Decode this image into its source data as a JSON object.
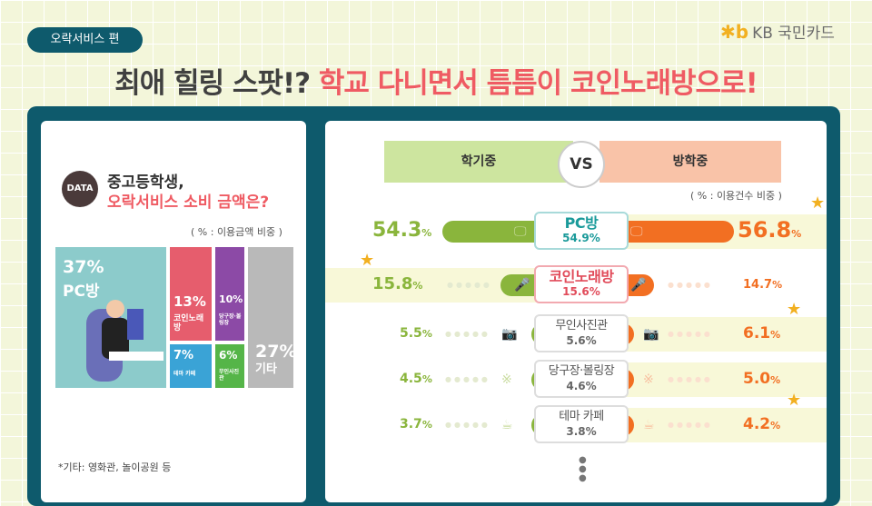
{
  "tag": "오락서비스 편",
  "logo": {
    "mark": "✱b",
    "text": "KB 국민카드"
  },
  "title": {
    "part1": "최애 힐링 스팟!?",
    "part2": "학교 다니면서 틈틈이 코인노래방으로!"
  },
  "left": {
    "badge": "DATA",
    "heading1": "중고등학생,",
    "heading2": "오락서비스 소비 금액은?",
    "unit": "( % : 이용금액 비중 )",
    "treemap": [
      {
        "pct": "37%",
        "label": "PC방",
        "color": "#8ccbcb"
      },
      {
        "pct": "13%",
        "label": "코인노래방",
        "color": "#e65d6d"
      },
      {
        "pct": "10%",
        "label": "당구장·볼링장",
        "color": "#8c4aa6"
      },
      {
        "pct": "27%",
        "label": "기타",
        "color": "#b9b9b9"
      },
      {
        "pct": "7%",
        "label": "테마 카페",
        "color": "#3aa3d6"
      },
      {
        "pct": "6%",
        "label": "무인사진관",
        "color": "#55b548"
      }
    ],
    "footnote": "*기타: 영화관, 놀이공원 등"
  },
  "right": {
    "header_left": "학기중",
    "vs": "VS",
    "header_right": "방학중",
    "unit": "( % : 이용건수 비중 )",
    "colors": {
      "semester": "#8ab53c",
      "vacation": "#f26f22"
    },
    "rows": [
      {
        "label": "PC방",
        "total": "54.9%",
        "semester": "54.3",
        "vacation": "56.8",
        "icon": "monitor-icon",
        "star": "vacation",
        "label_color": "#1a9a9a"
      },
      {
        "label": "코인노래방",
        "total": "15.6%",
        "semester": "15.8",
        "vacation": "14.7",
        "icon": "microphone-icon",
        "star": "semester",
        "label_color": "#e14b5a"
      },
      {
        "label": "무인사진관",
        "total": "5.6%",
        "semester": "5.5",
        "vacation": "6.1",
        "icon": "camera-icon",
        "star": "vacation",
        "label_color": "#555555"
      },
      {
        "label": "당구장·볼링장",
        "total": "4.6%",
        "semester": "4.5",
        "vacation": "5.0",
        "icon": "billiards-icon",
        "star": "",
        "label_color": "#555555"
      },
      {
        "label": "테마 카페",
        "total": "3.8%",
        "semester": "3.7",
        "vacation": "4.2",
        "icon": "coffee-cup-icon",
        "star": "vacation",
        "label_color": "#555555"
      }
    ],
    "pct_sign": "%"
  }
}
